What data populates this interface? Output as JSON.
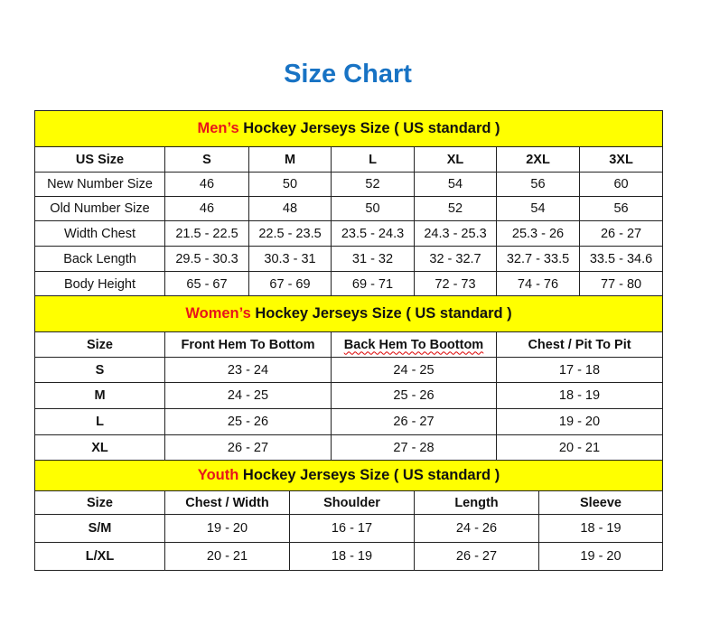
{
  "title": "Size Chart",
  "men": {
    "title_highlight": "Men’s",
    "title_rest": " Hockey Jerseys Size ( US standard )",
    "header": [
      "US Size",
      "S",
      "M",
      "L",
      "XL",
      "2XL",
      "3XL"
    ],
    "rows": [
      [
        "New Number Size",
        "46",
        "50",
        "52",
        "54",
        "56",
        "60"
      ],
      [
        "Old Number Size",
        "46",
        "48",
        "50",
        "52",
        "54",
        "56"
      ],
      [
        "Width Chest",
        "21.5 - 22.5",
        "22.5 - 23.5",
        "23.5 - 24.3",
        "24.3 - 25.3",
        "25.3 - 26",
        "26 - 27"
      ],
      [
        "Back Length",
        "29.5 - 30.3",
        "30.3 - 31",
        "31 - 32",
        "32 - 32.7",
        "32.7 - 33.5",
        "33.5 - 34.6"
      ],
      [
        "Body Height",
        "65 - 67",
        "67 - 69",
        "69 - 71",
        "72 - 73",
        "74 - 76",
        "77 - 80"
      ]
    ]
  },
  "women": {
    "title_highlight": "Women’s",
    "title_rest": " Hockey Jerseys Size ( US standard )",
    "header": [
      "Size",
      "Front Hem To Bottom",
      "Back Hem To Boottom",
      "Chest / Pit To Pit"
    ],
    "rows": [
      [
        "S",
        "23 - 24",
        "24 - 25",
        "17 - 18"
      ],
      [
        "M",
        "24 - 25",
        "25 - 26",
        "18 - 19"
      ],
      [
        "L",
        "25 - 26",
        "26 - 27",
        "19 - 20"
      ],
      [
        "XL",
        "26 - 27",
        "27 - 28",
        "20 - 21"
      ]
    ]
  },
  "youth": {
    "title_highlight": "Youth",
    "title_rest": " Hockey Jerseys Size ( US standard )",
    "header": [
      "Size",
      "Chest / Width",
      "Shoulder",
      "Length",
      "Sleeve"
    ],
    "rows": [
      [
        "S/M",
        "19 - 20",
        "16 - 17",
        "24 - 26",
        "18 - 19"
      ],
      [
        "L/XL",
        "20 - 21",
        "18 - 19",
        "26 - 27",
        "19 - 20"
      ]
    ]
  },
  "colors": {
    "title": "#1873c4",
    "header_bg": "#ffff00",
    "highlight": "#e8151b"
  }
}
